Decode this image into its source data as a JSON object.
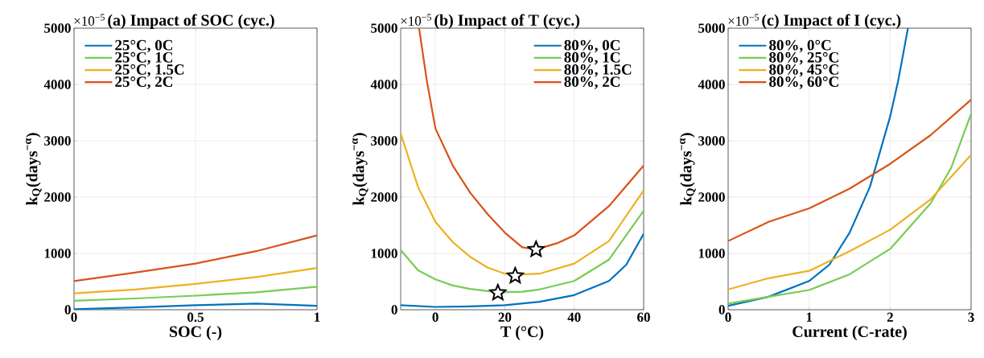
{
  "chart_data": [
    {
      "type": "line",
      "title": "(a) Impact of SOC (cyc.)",
      "annotations": [
        "×10$^{−5}$"
      ],
      "xlabel": "SOC (-)",
      "ylabel": "k$_{Q}$(days$^{−α}$)",
      "xlim": [
        0,
        1
      ],
      "ylim": [
        0,
        5000
      ],
      "xticks": [
        0,
        0.5,
        1
      ],
      "yticks": [
        0,
        1000,
        2000,
        3000,
        4000,
        5000
      ],
      "grid": true,
      "legend": "top left",
      "line_style": "solid",
      "x": [
        0,
        0.25,
        0.5,
        0.75,
        1
      ],
      "series": [
        {
          "name": "25°C, 0C",
          "color": "#0072bd",
          "values": [
            10,
            40,
            80,
            110,
            70
          ]
        },
        {
          "name": "25°C, 1C",
          "color": "#77cc55",
          "values": [
            160,
            200,
            250,
            310,
            410
          ]
        },
        {
          "name": "25°C, 1.5C",
          "color": "#edb120",
          "values": [
            290,
            360,
            460,
            580,
            740
          ]
        },
        {
          "name": "25°C, 2C",
          "color": "#d95319",
          "values": [
            510,
            660,
            820,
            1040,
            1320
          ]
        }
      ]
    },
    {
      "type": "line",
      "title": "(b) Impact of T (cyc.)",
      "annotations": [
        "×10$^{−5}$"
      ],
      "xlabel": "T (°C)",
      "ylabel": "k$_{Q}$(days$^{−α}$)",
      "xlim": [
        -10,
        60
      ],
      "ylim": [
        0,
        5000
      ],
      "xticks": [
        0,
        20,
        40,
        60
      ],
      "yticks": [
        0,
        1000,
        2000,
        3000,
        4000,
        5000
      ],
      "grid": true,
      "legend": "top right",
      "line_style": "solid",
      "series": [
        {
          "name": "80%, 0C",
          "color": "#0072bd",
          "x": [
            -10,
            0,
            10,
            20,
            30,
            40,
            50,
            55,
            60
          ],
          "values": [
            80,
            50,
            60,
            80,
            140,
            260,
            510,
            800,
            1350
          ]
        },
        {
          "name": "80%, 1C",
          "color": "#77cc55",
          "x": [
            -10,
            -5,
            0,
            5,
            10,
            18,
            25,
            30,
            40,
            50,
            60
          ],
          "values": [
            1060,
            700,
            540,
            430,
            370,
            310,
            320,
            360,
            510,
            890,
            1760
          ]
        },
        {
          "name": "80%, 1.5C",
          "color": "#edb120",
          "x": [
            -10,
            -5,
            0,
            5,
            10,
            15,
            20,
            23,
            30,
            40,
            50,
            60
          ],
          "values": [
            3130,
            2180,
            1560,
            1200,
            940,
            750,
            640,
            620,
            640,
            820,
            1220,
            2120
          ]
        },
        {
          "name": "80%, 2C",
          "color": "#d95319",
          "x": [
            -4.7,
            -2.5,
            0,
            5,
            10,
            15,
            20,
            25,
            29,
            35,
            40,
            50,
            60
          ],
          "values": [
            5000,
            4080,
            3220,
            2560,
            2080,
            1700,
            1370,
            1110,
            1070,
            1180,
            1320,
            1840,
            2560
          ]
        },
        {
          "type": "scatter",
          "marker": "star",
          "color": "#000000",
          "x": [
            18,
            23,
            29
          ],
          "values": [
            300,
            600,
            1070
          ]
        }
      ]
    },
    {
      "type": "line",
      "title": "(c) Impact of I (cyc.)",
      "annotations": [
        "×10$^{−5}$"
      ],
      "xlabel": "Current (C-rate)",
      "ylabel": "k$_{Q}$(days$^{−α}$)",
      "xlim": [
        0,
        3
      ],
      "ylim": [
        0,
        5000
      ],
      "xticks": [
        0,
        1,
        2,
        3
      ],
      "yticks": [
        0,
        1000,
        2000,
        3000,
        4000,
        5000
      ],
      "grid": true,
      "legend": "top left",
      "line_style": "solid",
      "series": [
        {
          "name": "80%, 0°C",
          "color": "#0072bd",
          "x": [
            0,
            0.5,
            1,
            1.25,
            1.5,
            1.75,
            2,
            2.1,
            2.22
          ],
          "values": [
            70,
            230,
            510,
            800,
            1370,
            2180,
            3430,
            4070,
            5000
          ]
        },
        {
          "name": "80%, 25°C",
          "color": "#77cc55",
          "x": [
            0,
            0.5,
            1,
            1.5,
            2,
            2.5,
            2.75,
            3
          ],
          "values": [
            110,
            230,
            350,
            630,
            1080,
            1890,
            2510,
            3480
          ]
        },
        {
          "name": "80%, 45°C",
          "color": "#edb120",
          "x": [
            0,
            0.5,
            1,
            1.5,
            2,
            2.5,
            3
          ],
          "values": [
            360,
            560,
            690,
            1040,
            1420,
            1960,
            2750
          ]
        },
        {
          "name": "80%, 60°C",
          "color": "#d95319",
          "x": [
            0,
            0.5,
            1,
            1.5,
            2,
            2.5,
            3
          ],
          "values": [
            1220,
            1560,
            1800,
            2150,
            2590,
            3100,
            3730
          ]
        }
      ]
    }
  ]
}
